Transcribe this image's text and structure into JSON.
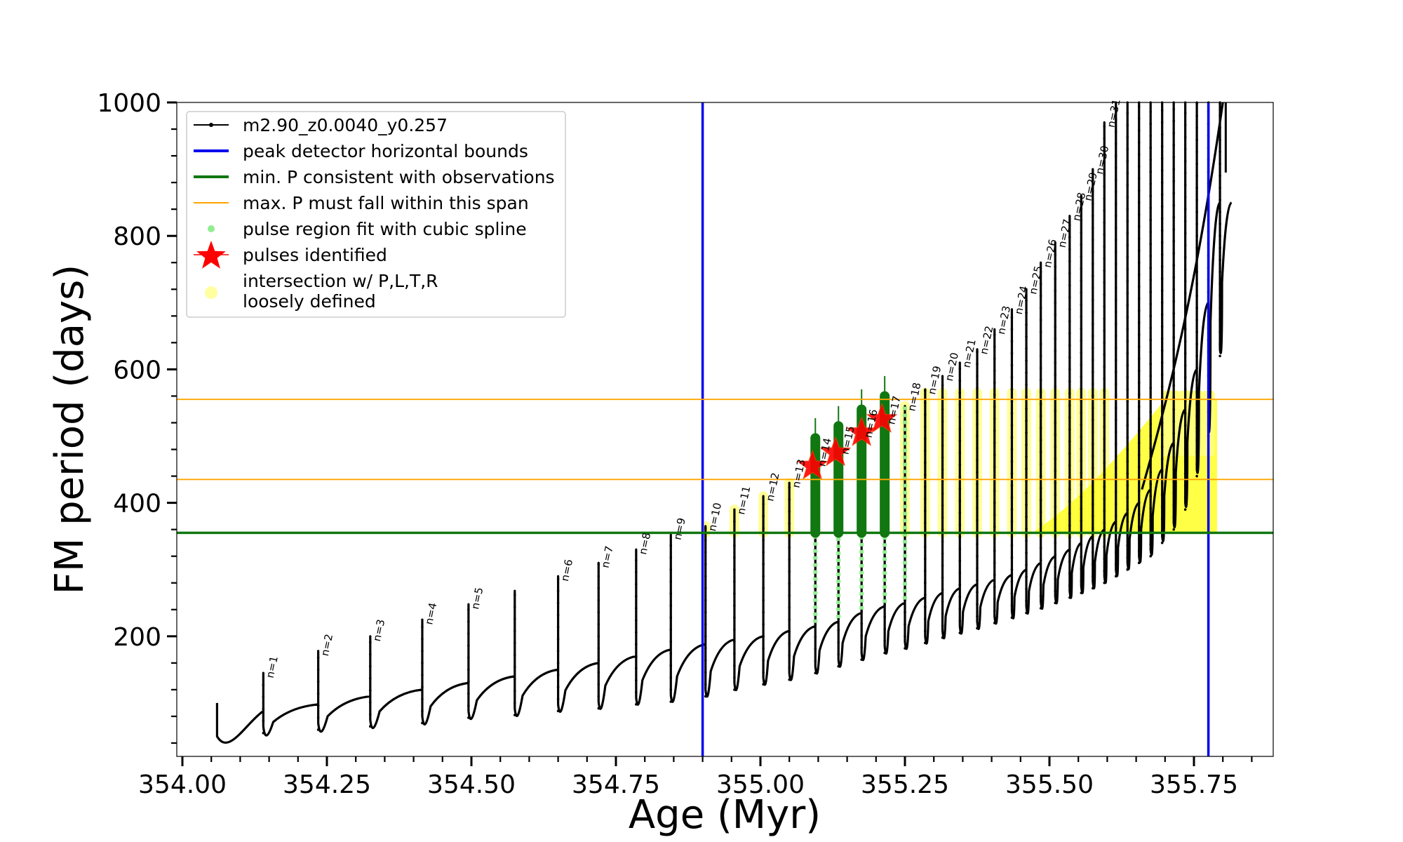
{
  "chart_data": {
    "type": "scatter",
    "title": "",
    "xlabel": "Age (Myr)",
    "ylabel": "FM period (days)",
    "xlim": [
      354.0,
      355.95
    ],
    "ylim": [
      20,
      1000
    ],
    "xticks": [
      354.0,
      354.25,
      354.5,
      354.75,
      355.0,
      355.25,
      355.5,
      355.75
    ],
    "xtick_labels": [
      "354.00",
      "354.25",
      "354.50",
      "354.75",
      "355.00",
      "355.25",
      "355.50",
      "355.75"
    ],
    "yticks": [
      200,
      400,
      600,
      800,
      1000
    ],
    "ytick_labels": [
      "200",
      "400",
      "600",
      "800",
      "1000"
    ],
    "grid": false,
    "legend_position": "top-left",
    "legend": [
      {
        "label": "m2.90_z0.0040_y0.257",
        "style": "line-dots",
        "color": "#000000"
      },
      {
        "label": "peak detector horizontal bounds",
        "style": "line",
        "color": "#0000ee"
      },
      {
        "label": "min. P consistent with observations",
        "style": "line",
        "color": "#117711"
      },
      {
        "label": "max. P must fall within this span",
        "style": "thinline",
        "color": "#ffa500"
      },
      {
        "label": "pulse region fit with cubic spline",
        "style": "dot",
        "color": "#90ee90"
      },
      {
        "label": "pulses identified",
        "style": "star",
        "color": "#ff0000"
      },
      {
        "label": "intersection w/ P,L,T,R",
        "label2": "loosely defined",
        "style": "bigdot",
        "color": "#ffffa0"
      }
    ],
    "vertical_lines": [
      354.9,
      355.775
    ],
    "min_period_line": 355,
    "max_period_span": [
      435,
      555
    ],
    "pulses": [
      {
        "n": 1,
        "age": 354.14,
        "base": 88,
        "peak": 145,
        "trough": 35
      },
      {
        "n": 2,
        "age": 354.235,
        "base": 98,
        "peak": 178,
        "trough": 40
      },
      {
        "n": 3,
        "age": 354.325,
        "base": 110,
        "peak": 200,
        "trough": 45
      },
      {
        "n": 4,
        "age": 354.415,
        "base": 120,
        "peak": 225,
        "trough": 50
      },
      {
        "n": 5,
        "age": 354.495,
        "base": 130,
        "peak": 248,
        "trough": 58
      },
      {
        "n": "",
        "age": 354.575,
        "base": 140,
        "peak": 268,
        "trough": 62
      },
      {
        "n": 6,
        "age": 354.65,
        "base": 150,
        "peak": 290,
        "trough": 68
      },
      {
        "n": 7,
        "age": 354.72,
        "base": 160,
        "peak": 310,
        "trough": 72
      },
      {
        "n": 8,
        "age": 354.785,
        "base": 170,
        "peak": 330,
        "trough": 78
      },
      {
        "n": 9,
        "age": 354.845,
        "base": 180,
        "peak": 352,
        "trough": 82
      },
      {
        "n": 10,
        "age": 354.905,
        "base": 188,
        "peak": 365,
        "trough": 90
      },
      {
        "n": 11,
        "age": 354.955,
        "base": 195,
        "peak": 390,
        "trough": 100
      },
      {
        "n": 12,
        "age": 355.005,
        "base": 200,
        "peak": 410,
        "trough": 108
      },
      {
        "n": 13,
        "age": 355.05,
        "base": 208,
        "peak": 430,
        "trough": 115
      },
      {
        "n": 14,
        "age": 355.095,
        "base": 215,
        "peak": 462,
        "trough": 125
      },
      {
        "n": 15,
        "age": 355.135,
        "base": 222,
        "peak": 480,
        "trough": 135
      },
      {
        "n": 16,
        "age": 355.175,
        "base": 235,
        "peak": 505,
        "trough": 145
      },
      {
        "n": 17,
        "age": 355.215,
        "base": 245,
        "peak": 525,
        "trough": 155
      },
      {
        "n": 18,
        "age": 355.25,
        "base": 250,
        "peak": 545,
        "trough": 162
      },
      {
        "n": 19,
        "age": 355.285,
        "base": 258,
        "peak": 570,
        "trough": 170
      },
      {
        "n": 20,
        "age": 355.315,
        "base": 265,
        "peak": 590,
        "trough": 178
      },
      {
        "n": 21,
        "age": 355.345,
        "base": 272,
        "peak": 610,
        "trough": 185
      },
      {
        "n": 22,
        "age": 355.375,
        "base": 278,
        "peak": 630,
        "trough": 192
      },
      {
        "n": 23,
        "age": 355.405,
        "base": 285,
        "peak": 660,
        "trough": 200
      },
      {
        "n": 24,
        "age": 355.435,
        "base": 292,
        "peak": 690,
        "trough": 208
      },
      {
        "n": 25,
        "age": 355.46,
        "base": 300,
        "peak": 720,
        "trough": 215
      },
      {
        "n": 26,
        "age": 355.485,
        "base": 310,
        "peak": 760,
        "trough": 222
      },
      {
        "n": 27,
        "age": 355.51,
        "base": 320,
        "peak": 790,
        "trough": 230
      },
      {
        "n": 28,
        "age": 355.535,
        "base": 330,
        "peak": 830,
        "trough": 238
      },
      {
        "n": 29,
        "age": 355.555,
        "base": 340,
        "peak": 860,
        "trough": 245
      },
      {
        "n": 30,
        "age": 355.575,
        "base": 350,
        "peak": 900,
        "trough": 252
      },
      {
        "n": 31,
        "age": 355.595,
        "base": 360,
        "peak": 970,
        "trough": 260
      },
      {
        "n": "",
        "age": 355.615,
        "base": 372,
        "peak": 1000,
        "trough": 270
      },
      {
        "n": "",
        "age": 355.635,
        "base": 385,
        "peak": 1000,
        "trough": 280
      },
      {
        "n": "",
        "age": 355.655,
        "base": 400,
        "peak": 1000,
        "trough": 290
      },
      {
        "n": "",
        "age": 355.675,
        "base": 420,
        "peak": 1000,
        "trough": 300
      },
      {
        "n": "",
        "age": 355.695,
        "base": 450,
        "peak": 1000,
        "trough": 320
      },
      {
        "n": "",
        "age": 355.715,
        "base": 490,
        "peak": 1000,
        "trough": 340
      },
      {
        "n": "",
        "age": 355.735,
        "base": 540,
        "peak": 1000,
        "trough": 370
      },
      {
        "n": "",
        "age": 355.755,
        "base": 600,
        "peak": 1000,
        "trough": 420
      },
      {
        "n": "",
        "age": 355.775,
        "base": 700,
        "peak": 1000,
        "trough": 480
      },
      {
        "n": "",
        "age": 355.795,
        "base": 850,
        "peak": 1000,
        "trough": 600
      }
    ],
    "spline_pulses": [
      14,
      15,
      16,
      17
    ],
    "identified_pulses": [
      {
        "n": 14,
        "age": 355.09,
        "period": 455
      },
      {
        "n": 15,
        "age": 355.13,
        "period": 475
      },
      {
        "n": 16,
        "age": 355.175,
        "period": 505
      },
      {
        "n": 17,
        "age": 355.21,
        "period": 525
      }
    ]
  }
}
